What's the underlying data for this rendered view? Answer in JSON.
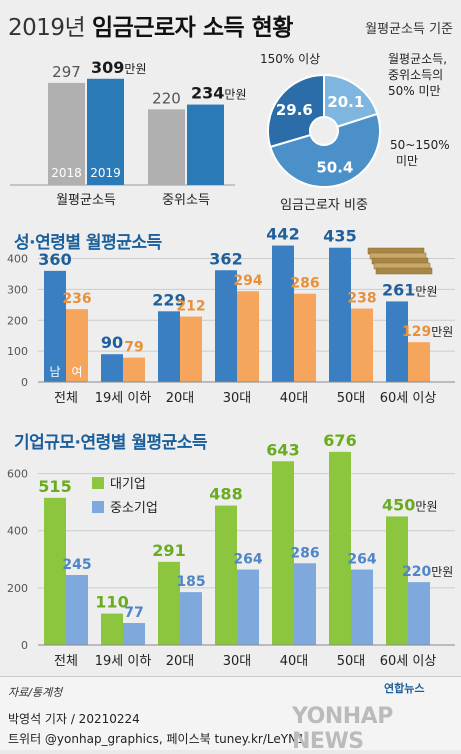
{
  "header": {
    "title_light": "2019년",
    "title_bold": "임금근로자 소득 현황",
    "basis_note": "월평균소득 기준"
  },
  "chart_data": [
    {
      "type": "bar",
      "id": "income-comparison",
      "categories": [
        "월평균소득",
        "중위소득"
      ],
      "series": [
        {
          "name": "2018",
          "values": [
            297,
            220
          ],
          "color": "#b0b0b0"
        },
        {
          "name": "2019",
          "values": [
            309,
            234
          ],
          "color": "#2a7ab8"
        }
      ],
      "unit_label": "만원",
      "ylim": [
        0,
        320
      ]
    },
    {
      "type": "pie",
      "id": "worker-share",
      "title": "임금근로자 비중",
      "slices": [
        {
          "label": "150% 이상",
          "value": 29.6,
          "color": "#2a6da8"
        },
        {
          "label": "월평균소득, 중위소득의 50% 미만",
          "value": 20.1,
          "color": "#7fb6e0"
        },
        {
          "label": "50~150% 미만",
          "value": 50.4,
          "color": "#4b90c8"
        }
      ]
    },
    {
      "type": "bar",
      "id": "gender-age",
      "title": "성·연령별 월평균소득",
      "categories": [
        "전체",
        "19세 이하",
        "20대",
        "30대",
        "40대",
        "50대",
        "60세 이상"
      ],
      "series": [
        {
          "name": "남",
          "values": [
            360,
            90,
            229,
            362,
            442,
            435,
            261
          ],
          "color": "#3a7fc1"
        },
        {
          "name": "여",
          "values": [
            236,
            79,
            212,
            294,
            286,
            238,
            129
          ],
          "color": "#f5a55c"
        }
      ],
      "unit_label": "만원",
      "yticks": [
        0,
        100,
        200,
        300,
        400
      ],
      "ylim": [
        0,
        460
      ]
    },
    {
      "type": "bar",
      "id": "size-age",
      "title": "기업규모·연령별 월평균소득",
      "categories": [
        "전체",
        "19세 이하",
        "20대",
        "30대",
        "40대",
        "50대",
        "60세 이상"
      ],
      "series": [
        {
          "name": "대기업",
          "values": [
            515,
            110,
            291,
            488,
            643,
            676,
            450
          ],
          "color": "#8cc63f"
        },
        {
          "name": "중소기업",
          "values": [
            245,
            77,
            185,
            264,
            286,
            264,
            220
          ],
          "color": "#7fa9dc"
        }
      ],
      "unit_label": "만원",
      "yticks": [
        0,
        200,
        400,
        600
      ],
      "ylim": [
        0,
        700
      ]
    }
  ],
  "footer": {
    "source": "자료/통계청",
    "credit_line1": "박영석 기자 /  20210224",
    "credit_line2": "트위터 @yonhap_graphics, 페이스북 tuney.kr/LeYN1",
    "agency_logo": "연합뉴스",
    "watermark": "YONHAP NEWS"
  }
}
